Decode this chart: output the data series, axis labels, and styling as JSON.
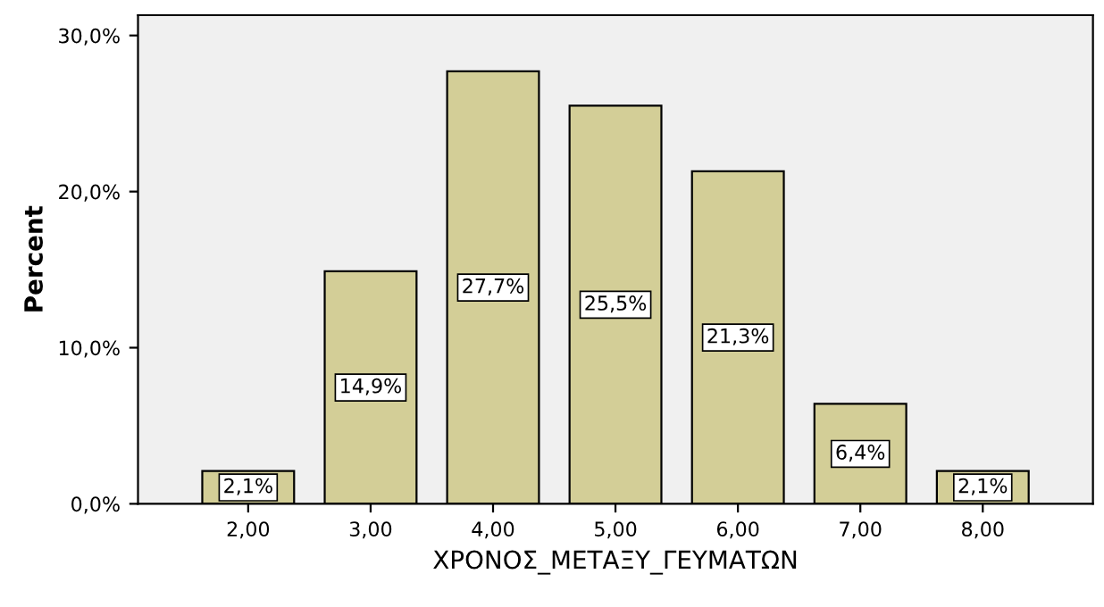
{
  "chart_data": {
    "type": "bar",
    "xlabel": "ΧΡΟΝΟΣ_ΜΕΤΑΞΥ_ΓΕΥΜΑΤΩΝ",
    "ylabel": "Percent",
    "categories": [
      "2,00",
      "3,00",
      "4,00",
      "5,00",
      "6,00",
      "7,00",
      "8,00"
    ],
    "values": [
      2.1,
      14.9,
      27.7,
      25.5,
      21.3,
      6.4,
      2.1
    ],
    "value_labels": [
      "2,1%",
      "14,9%",
      "27,7%",
      "25,5%",
      "21,3%",
      "6,4%",
      "2,1%"
    ],
    "color": "#d3ce97",
    "ylim": [
      0,
      31.3
    ],
    "yticks": [
      {
        "value": 0,
        "label": "0,0%"
      },
      {
        "value": 10,
        "label": "10,0%"
      },
      {
        "value": 20,
        "label": "20,0%"
      },
      {
        "value": 30,
        "label": "30,0%"
      }
    ],
    "grid": false
  }
}
